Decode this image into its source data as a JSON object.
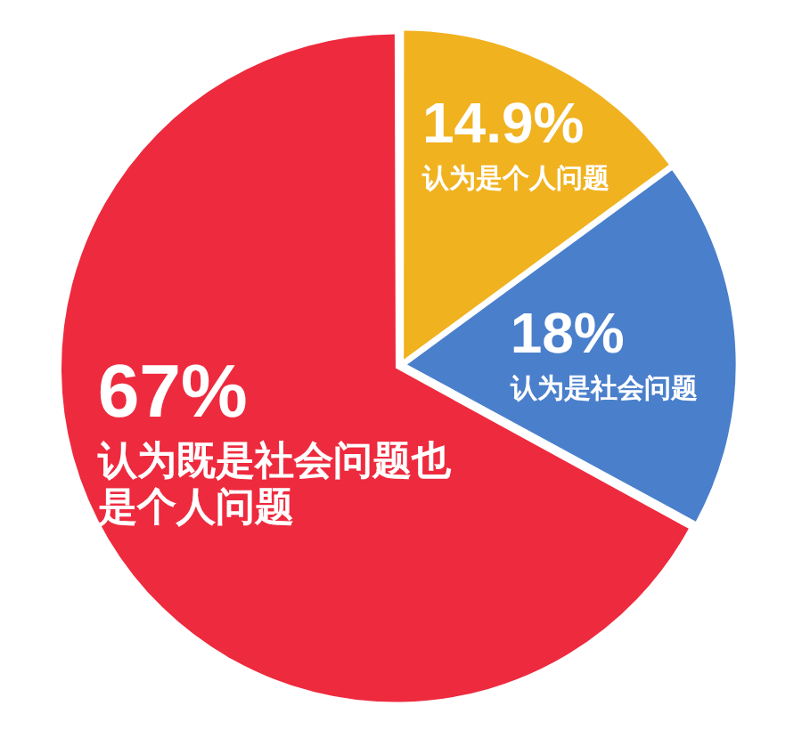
{
  "chart_data": {
    "type": "pie",
    "categories": [
      "认为是个人问题",
      "认为是社会问题",
      "认为既是社会问题也是个人问题"
    ],
    "values": [
      14.9,
      18,
      67
    ],
    "colors": [
      "#f0b21f",
      "#4a7fcb",
      "#ee2a3e"
    ],
    "value_labels": [
      "14.9%",
      "18%",
      "67%"
    ],
    "legend": false
  }
}
